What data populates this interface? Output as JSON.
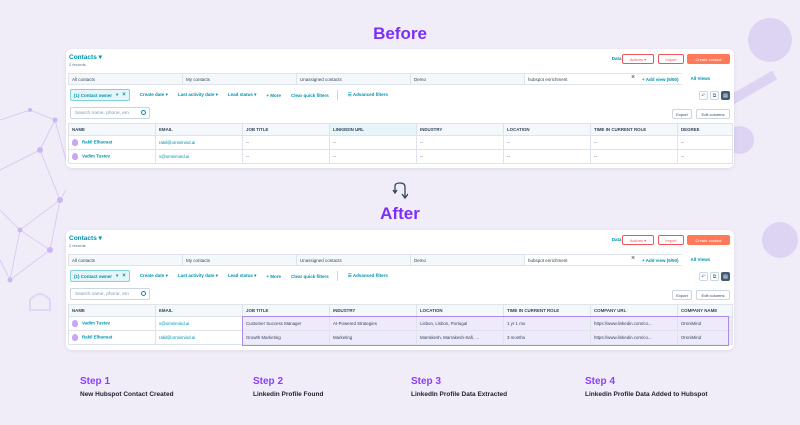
{
  "headings": {
    "before": "Before",
    "after": "After"
  },
  "app": {
    "title": "Contacts",
    "records": "2 records",
    "data_quality": "Data Quality",
    "actions": "Actions",
    "import": "Import",
    "create": "Create contact",
    "tabs": [
      "All contacts",
      "My contacts",
      "Unassigned contacts",
      "Demo",
      "hubspot enrichment"
    ],
    "add_view": "+ Add view (5/50)",
    "all_views": "All Views",
    "filters": {
      "contact_owner": "(1) Contact owner",
      "create_date": "Create date",
      "last_activity": "Last activity date",
      "lead_status": "Lead status",
      "more": "+ More",
      "clear": "Clear quick filters",
      "advanced": "Advanced filters"
    },
    "search_placeholder": "Search name, phone, em",
    "export": "Export",
    "edit_columns": "Edit columns"
  },
  "before_table": {
    "columns": [
      "NAME",
      "EMAIL",
      "JOB TITLE",
      "LINKEDIN URL",
      "INDUSTRY",
      "LOCATION",
      "TIME IN CURRENT ROLE",
      "DEGREE"
    ],
    "rows": [
      {
        "name": "Rakil Elhaouat",
        "email": "rakil@omnimind.ai",
        "job": "--",
        "linkedin": "--",
        "industry": "--",
        "location": "--",
        "time": "--",
        "degree": "--"
      },
      {
        "name": "Vadim Tustev",
        "email": "v@omnimind.ai",
        "job": "--",
        "linkedin": "--",
        "industry": "--",
        "location": "--",
        "time": "--",
        "degree": "--"
      }
    ]
  },
  "after_table": {
    "columns": [
      "NAME",
      "EMAIL",
      "JOB TITLE",
      "INDUSTRY",
      "LOCATION",
      "TIME IN CURRENT ROLE",
      "COMPANY URL",
      "COMPANY NAME"
    ],
    "rows": [
      {
        "name": "Vadim Tustev",
        "email": "v@omnimind.ai",
        "job": "Customer Success Manager",
        "industry": "AI-Powered Strategies",
        "location": "Lisbon, Lisbon, Portugal",
        "time": "1 yr 1 mo",
        "url": "https://www.linkedin.com/co...",
        "company": "OmniMind"
      },
      {
        "name": "Rakil Elhaouat",
        "email": "rakil@omnimind.ai",
        "job": "Growth Marketing",
        "industry": "Marketing",
        "location": "Marrakesh, Marrakesh-Safi, ...",
        "time": "3 months",
        "url": "https://www.linkedin.com/co...",
        "company": "OmniMind"
      }
    ]
  },
  "steps": [
    {
      "num": "Step 1",
      "desc": "New Hubspot Contact Created"
    },
    {
      "num": "Step 2",
      "desc": "Linkedin Profile Found"
    },
    {
      "num": "Step 3",
      "desc": "LinkedIn Profile Data Extracted"
    },
    {
      "num": "Step 4",
      "desc": "Linkedin Profile Data Added to Hubspot"
    }
  ],
  "colors": {
    "accent": "#7b2ff7",
    "hubspot_orange": "#ff7a59",
    "link": "#0091ae",
    "highlight": "#efe9fc"
  }
}
